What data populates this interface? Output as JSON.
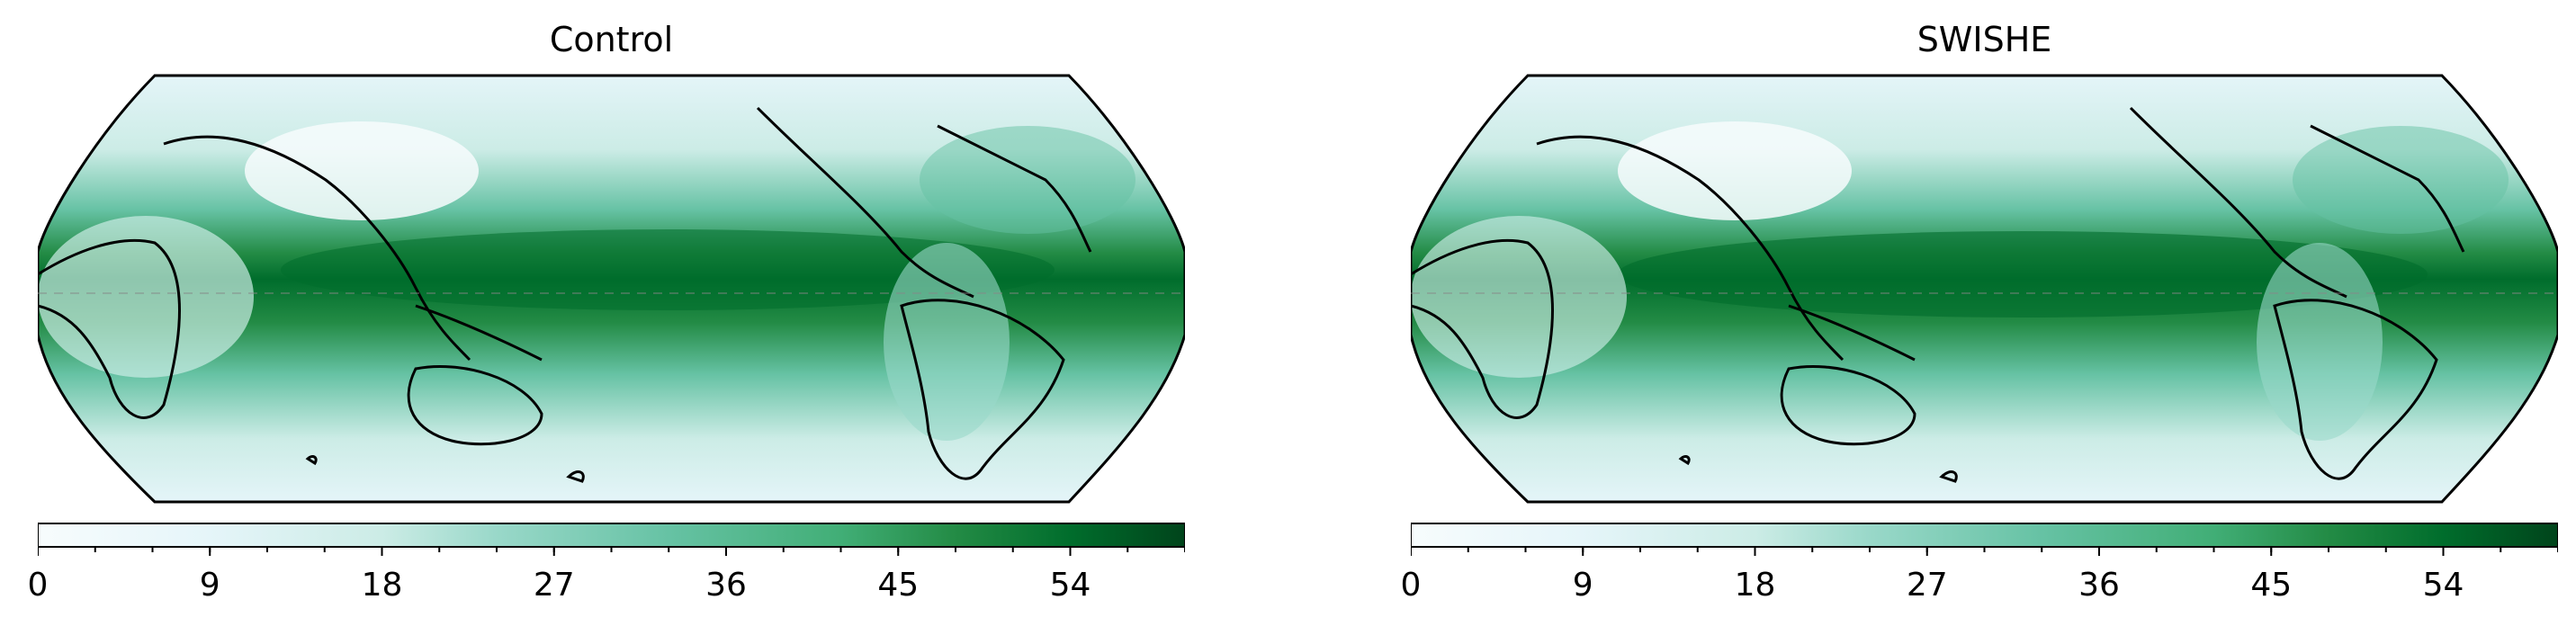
{
  "panels": [
    {
      "title": "Control"
    },
    {
      "title": "SWISHE"
    }
  ],
  "colorbar": {
    "ticks": [
      "0",
      "9",
      "18",
      "27",
      "36",
      "45",
      "54"
    ],
    "tick_values": [
      0,
      9,
      18,
      27,
      36,
      45,
      54
    ],
    "min": 0,
    "max": 60,
    "levels": 20,
    "colormap": "BuGn",
    "colors": [
      "#f7fcfd",
      "#e5f5f9",
      "#ccece6",
      "#99d8c9",
      "#66c2a4",
      "#41ae76",
      "#238b45",
      "#006d2c",
      "#00441b"
    ]
  },
  "map": {
    "projection": "Robinson (Pacific-centered)",
    "features": [
      "coastlines",
      "equator"
    ]
  }
}
